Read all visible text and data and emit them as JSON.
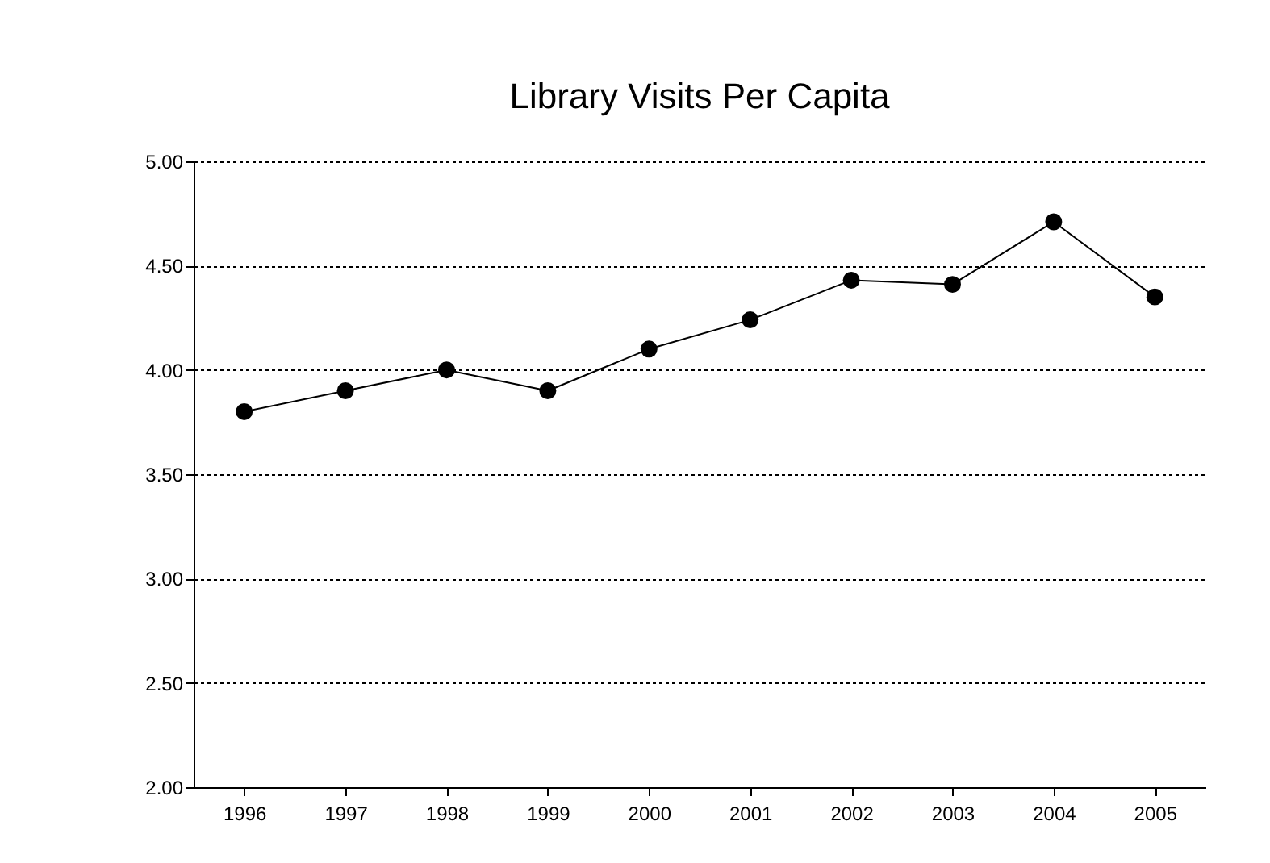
{
  "chart_data": {
    "type": "line",
    "title": "Library Visits Per Capita",
    "categories": [
      "1996",
      "1997",
      "1998",
      "1999",
      "2000",
      "2001",
      "2002",
      "2003",
      "2004",
      "2005"
    ],
    "series": [
      {
        "color": "#000000",
        "values": [
          3.8,
          3.9,
          4.0,
          3.9,
          4.1,
          4.24,
          4.43,
          4.41,
          4.71,
          4.35
        ]
      }
    ],
    "ylim": [
      2,
      5
    ],
    "yticks": [
      {
        "value": 2,
        "label": "2.00"
      },
      {
        "value": 2.5,
        "label": "2.50"
      },
      {
        "value": 3,
        "label": "3.00"
      },
      {
        "value": 3.5,
        "label": "3.50"
      },
      {
        "value": 4,
        "label": "4.00"
      },
      {
        "value": 4.5,
        "label": "4.50"
      },
      {
        "value": 5,
        "label": "5.00"
      }
    ],
    "grid": "y",
    "marker": "circle",
    "line_style": "solid",
    "legend": false
  }
}
